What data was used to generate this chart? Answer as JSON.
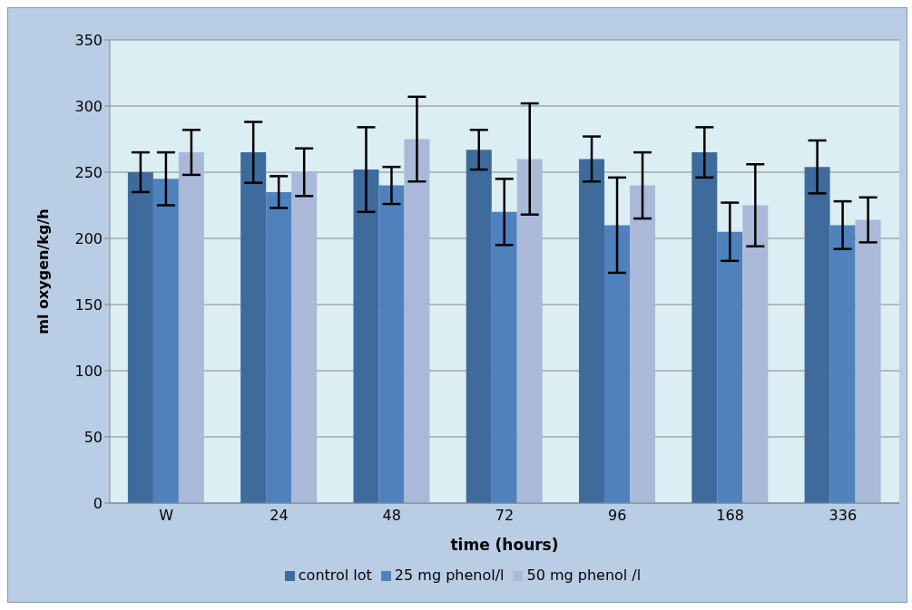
{
  "chart_data": {
    "type": "bar",
    "xlabel": "time (hours)",
    "ylabel": "ml oxygen/kg/h",
    "categories": [
      "W",
      "24",
      "48",
      "72",
      "96",
      "168",
      "336"
    ],
    "series": [
      {
        "name": "control lot",
        "color": "#3f6a9c",
        "values": [
          250,
          265,
          252,
          267,
          260,
          265,
          254
        ],
        "errors": [
          15,
          23,
          32,
          15,
          17,
          19,
          20
        ]
      },
      {
        "name": "25 mg phenol/l",
        "color": "#4f81bd",
        "values": [
          245,
          235,
          240,
          220,
          210,
          205,
          210
        ],
        "errors": [
          20,
          12,
          14,
          25,
          36,
          22,
          18
        ]
      },
      {
        "name": "50 mg phenol /l",
        "color": "#aab9d8",
        "values": [
          265,
          250,
          275,
          260,
          240,
          225,
          214
        ],
        "errors": [
          17,
          18,
          32,
          42,
          25,
          31,
          17
        ]
      }
    ],
    "ylim": [
      0,
      350
    ],
    "yticks": [
      0,
      50,
      100,
      150,
      200,
      250,
      300,
      350
    ],
    "grid": "y",
    "legend": "bottom"
  }
}
